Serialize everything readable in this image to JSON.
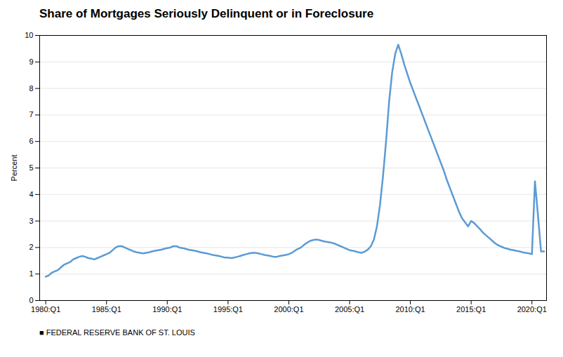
{
  "chart_data": {
    "type": "line",
    "title": "Share of Mortgages Seriously Delinquent or in Foreclosure",
    "ylabel": "Percent",
    "source": "■  FEDERAL RESERVE BANK OF ST. LOUIS",
    "color": "#5B9BD5",
    "grid": "y",
    "xlim": [
      1979.5,
      2021.2
    ],
    "xticks": [
      {
        "value": 1980,
        "label": "1980:Q1"
      },
      {
        "value": 1985,
        "label": "1985:Q1"
      },
      {
        "value": 1990,
        "label": "1990:Q1"
      },
      {
        "value": 1995,
        "label": "1995:Q1"
      },
      {
        "value": 2000,
        "label": "2000:Q1"
      },
      {
        "value": 2005,
        "label": "2005:Q1"
      },
      {
        "value": 2010,
        "label": "2010:Q1"
      },
      {
        "value": 2015,
        "label": "2015:Q1"
      },
      {
        "value": 2020,
        "label": "2020:Q1"
      }
    ],
    "ylim": [
      0,
      10
    ],
    "yticks": [
      0,
      1,
      2,
      3,
      4,
      5,
      6,
      7,
      8,
      9,
      10
    ],
    "x": [
      1980.0,
      1980.25,
      1980.5,
      1980.75,
      1981.0,
      1981.25,
      1981.5,
      1981.75,
      1982.0,
      1982.25,
      1982.5,
      1982.75,
      1983.0,
      1983.25,
      1983.5,
      1983.75,
      1984.0,
      1984.25,
      1984.5,
      1984.75,
      1985.0,
      1985.25,
      1985.5,
      1985.75,
      1986.0,
      1986.25,
      1986.5,
      1986.75,
      1987.0,
      1987.25,
      1987.5,
      1987.75,
      1988.0,
      1988.25,
      1988.5,
      1988.75,
      1989.0,
      1989.25,
      1989.5,
      1989.75,
      1990.0,
      1990.25,
      1990.5,
      1990.75,
      1991.0,
      1991.25,
      1991.5,
      1991.75,
      1992.0,
      1992.25,
      1992.5,
      1992.75,
      1993.0,
      1993.25,
      1993.5,
      1993.75,
      1994.0,
      1994.25,
      1994.5,
      1994.75,
      1995.0,
      1995.25,
      1995.5,
      1995.75,
      1996.0,
      1996.25,
      1996.5,
      1996.75,
      1997.0,
      1997.25,
      1997.5,
      1997.75,
      1998.0,
      1998.25,
      1998.5,
      1998.75,
      1999.0,
      1999.25,
      1999.5,
      1999.75,
      2000.0,
      2000.25,
      2000.5,
      2000.75,
      2001.0,
      2001.25,
      2001.5,
      2001.75,
      2002.0,
      2002.25,
      2002.5,
      2002.75,
      2003.0,
      2003.25,
      2003.5,
      2003.75,
      2004.0,
      2004.25,
      2004.5,
      2004.75,
      2005.0,
      2005.25,
      2005.5,
      2005.75,
      2006.0,
      2006.25,
      2006.5,
      2006.75,
      2007.0,
      2007.25,
      2007.5,
      2007.75,
      2008.0,
      2008.25,
      2008.5,
      2008.75,
      2009.0,
      2009.25,
      2009.5,
      2009.75,
      2010.0,
      2010.25,
      2010.5,
      2010.75,
      2011.0,
      2011.25,
      2011.5,
      2011.75,
      2012.0,
      2012.25,
      2012.5,
      2012.75,
      2013.0,
      2013.25,
      2013.5,
      2013.75,
      2014.0,
      2014.25,
      2014.5,
      2014.75,
      2015.0,
      2015.25,
      2015.5,
      2015.75,
      2016.0,
      2016.25,
      2016.5,
      2016.75,
      2017.0,
      2017.25,
      2017.5,
      2017.75,
      2018.0,
      2018.25,
      2018.5,
      2018.75,
      2019.0,
      2019.25,
      2019.5,
      2019.75,
      2020.0,
      2020.25,
      2020.5,
      2020.75,
      2021.0
    ],
    "values": [
      0.9,
      0.95,
      1.05,
      1.1,
      1.15,
      1.25,
      1.35,
      1.4,
      1.45,
      1.55,
      1.6,
      1.65,
      1.68,
      1.65,
      1.6,
      1.58,
      1.55,
      1.6,
      1.65,
      1.7,
      1.75,
      1.8,
      1.9,
      2.0,
      2.05,
      2.05,
      2.0,
      1.95,
      1.9,
      1.85,
      1.82,
      1.8,
      1.78,
      1.8,
      1.82,
      1.85,
      1.88,
      1.9,
      1.92,
      1.95,
      1.98,
      2.0,
      2.05,
      2.05,
      2.0,
      1.98,
      1.95,
      1.92,
      1.9,
      1.88,
      1.85,
      1.82,
      1.8,
      1.78,
      1.75,
      1.72,
      1.7,
      1.68,
      1.65,
      1.62,
      1.62,
      1.6,
      1.62,
      1.65,
      1.68,
      1.72,
      1.75,
      1.78,
      1.8,
      1.8,
      1.78,
      1.75,
      1.72,
      1.7,
      1.68,
      1.65,
      1.65,
      1.68,
      1.7,
      1.72,
      1.75,
      1.8,
      1.88,
      1.95,
      2.0,
      2.1,
      2.18,
      2.25,
      2.28,
      2.3,
      2.28,
      2.25,
      2.22,
      2.2,
      2.18,
      2.15,
      2.1,
      2.05,
      2.0,
      1.95,
      1.9,
      1.88,
      1.85,
      1.82,
      1.8,
      1.85,
      1.92,
      2.05,
      2.3,
      2.8,
      3.6,
      4.7,
      6.0,
      7.5,
      8.6,
      9.3,
      9.65,
      9.3,
      8.9,
      8.55,
      8.2,
      7.9,
      7.6,
      7.3,
      7.0,
      6.7,
      6.4,
      6.1,
      5.8,
      5.5,
      5.2,
      4.9,
      4.55,
      4.25,
      3.95,
      3.65,
      3.35,
      3.1,
      2.95,
      2.8,
      3.0,
      2.92,
      2.8,
      2.68,
      2.55,
      2.45,
      2.35,
      2.25,
      2.15,
      2.08,
      2.03,
      1.98,
      1.95,
      1.92,
      1.9,
      1.87,
      1.85,
      1.82,
      1.8,
      1.78,
      1.75,
      4.5,
      3.2,
      1.85,
      1.85
    ]
  }
}
